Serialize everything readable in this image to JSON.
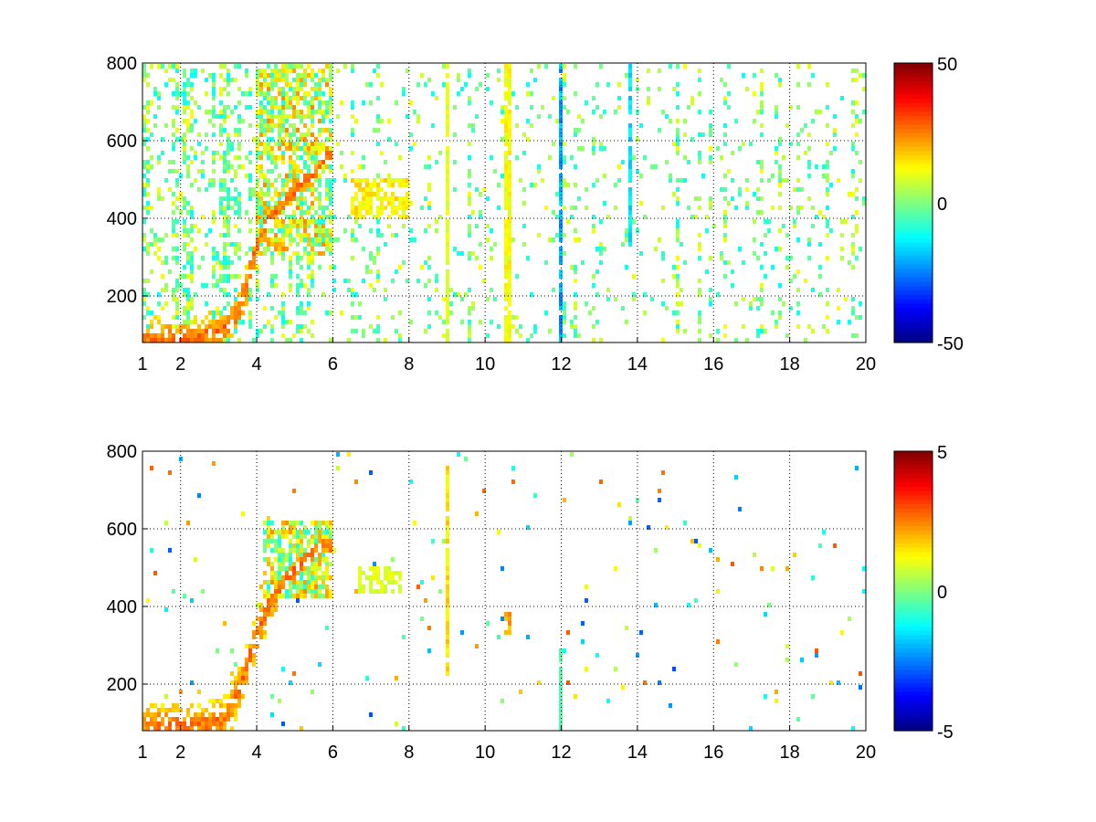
{
  "chart_data": [
    {
      "type": "heatmap",
      "title": "",
      "xlabel": "",
      "ylabel": "",
      "x_ticks": [
        "1",
        "2",
        "4",
        "6",
        "8",
        "10",
        "12",
        "14",
        "16",
        "18",
        "20"
      ],
      "x_tick_values": [
        1,
        2,
        4,
        6,
        8,
        10,
        12,
        14,
        16,
        18,
        20
      ],
      "y_ticks": [
        "200",
        "400",
        "600",
        "800"
      ],
      "y_tick_values": [
        200,
        400,
        600,
        800
      ],
      "xlim": [
        1,
        20
      ],
      "ylim": [
        80,
        800
      ],
      "grid": true,
      "colormap": "jet",
      "colorbar": {
        "ticks": [
          "50",
          "0",
          "-50"
        ],
        "tick_values": [
          50,
          0,
          -50
        ],
        "clim": [
          -50,
          50
        ],
        "placement": "right"
      },
      "features": {
        "ridge": [
          [
            2,
            85
          ],
          [
            2.5,
            95
          ],
          [
            3,
            110
          ],
          [
            3.4,
            140
          ],
          [
            3.7,
            210
          ],
          [
            3.9,
            300
          ],
          [
            4.2,
            380
          ],
          [
            4.5,
            420
          ],
          [
            5,
            470
          ],
          [
            5.5,
            510
          ],
          [
            5.8,
            560
          ]
        ],
        "streaks": [
          {
            "x": 9.0,
            "y": [
              80,
              800
            ],
            "value": 10
          },
          {
            "x": 10.6,
            "y": [
              80,
              800
            ],
            "value": 12
          },
          {
            "x": 12.0,
            "y": [
              80,
              800
            ],
            "value": -20
          },
          {
            "x": 13.8,
            "y": [
              330,
              800
            ],
            "value": -15
          }
        ],
        "dense_region": {
          "x": [
            4,
            6
          ],
          "y": [
            300,
            800
          ]
        },
        "blob": {
          "x": [
            6.5,
            8
          ],
          "y": [
            400,
            500
          ],
          "value": 15
        }
      }
    },
    {
      "type": "heatmap",
      "title": "",
      "xlabel": "",
      "ylabel": "",
      "x_ticks": [
        "1",
        "2",
        "4",
        "6",
        "8",
        "10",
        "12",
        "14",
        "16",
        "18",
        "20"
      ],
      "x_tick_values": [
        1,
        2,
        4,
        6,
        8,
        10,
        12,
        14,
        16,
        18,
        20
      ],
      "y_ticks": [
        "200",
        "400",
        "600",
        "800"
      ],
      "y_tick_values": [
        200,
        400,
        600,
        800
      ],
      "xlim": [
        1,
        20
      ],
      "ylim": [
        80,
        800
      ],
      "grid": true,
      "colormap": "jet",
      "colorbar": {
        "ticks": [
          "5",
          "0",
          "-5"
        ],
        "tick_values": [
          5,
          0,
          -5
        ],
        "clim": [
          -5,
          5
        ],
        "placement": "right"
      },
      "features": {
        "ridge": [
          [
            2.7,
            95
          ],
          [
            3.2,
            110
          ],
          [
            3.6,
            200
          ],
          [
            3.9,
            300
          ],
          [
            4.3,
            400
          ],
          [
            4.8,
            480
          ],
          [
            5.3,
            520
          ],
          [
            5.8,
            560
          ]
        ],
        "streaks": [
          {
            "x": 9.0,
            "y": [
              220,
              790
            ],
            "value": 1.5
          },
          {
            "x": 10.6,
            "y": [
              330,
              380
            ],
            "value": 2
          },
          {
            "x": 12.0,
            "y": [
              80,
              290
            ],
            "value": -0.5
          }
        ],
        "dense_region": {
          "x": [
            4.2,
            6
          ],
          "y": [
            420,
            620
          ]
        },
        "blob": {
          "x": [
            6.7,
            7.8
          ],
          "y": [
            430,
            500
          ],
          "value": 1
        }
      }
    }
  ]
}
